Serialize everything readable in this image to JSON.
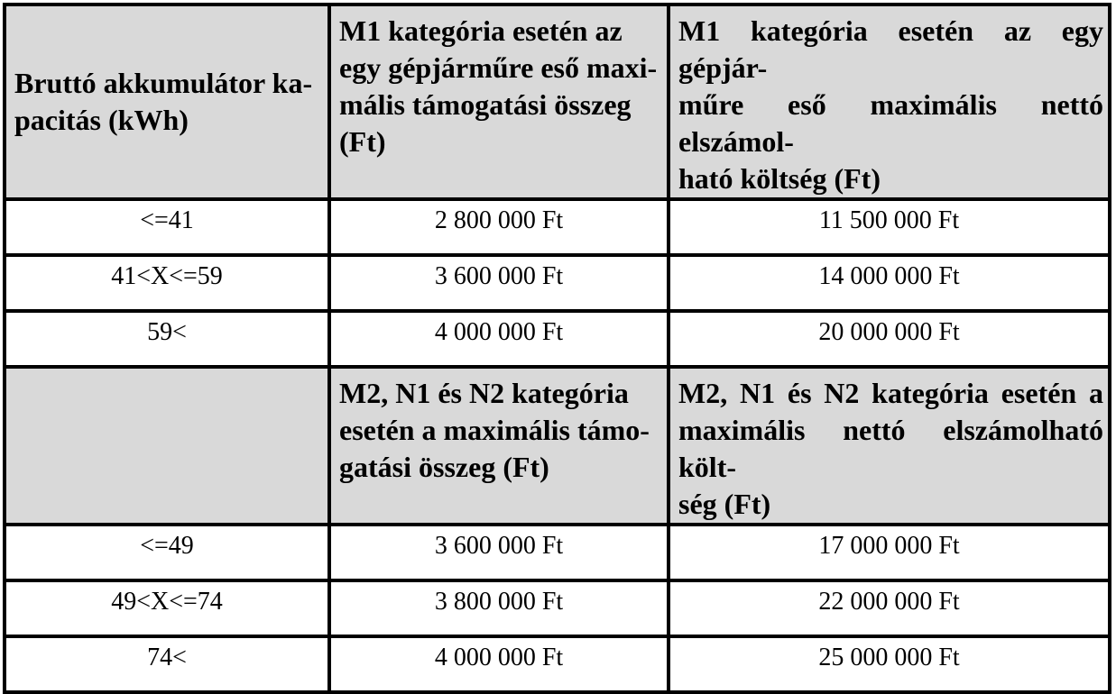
{
  "colors": {
    "header_background": "#d9d9d9",
    "border": "#000000",
    "text": "#000000",
    "page_background": "#ffffff"
  },
  "table": {
    "m1_header": {
      "capacity_lines": [
        "Bruttó akkumulátor ka-",
        "pacitás (kWh)"
      ],
      "support_lines": [
        "M1 kategória esetén az",
        "egy gépjárműre eső maxi-",
        "mális támogatási összeg",
        "(Ft)"
      ],
      "cost_lines": [
        "M1 kategória esetén az egy gépjár-",
        "műre eső maximális nettó elszámol-",
        "ható költség (Ft)"
      ]
    },
    "m1_rows": [
      {
        "capacity": "<=41",
        "support": "2 800 000 Ft",
        "cost": "11 500 000 Ft"
      },
      {
        "capacity": "41<X<=59",
        "support": "3 600 000 Ft",
        "cost": "14 000 000 Ft"
      },
      {
        "capacity": "59<",
        "support": "4 000 000 Ft",
        "cost": "20 000 000 Ft"
      }
    ],
    "m2_header": {
      "capacity_label": "",
      "support_lines": [
        "M2, N1 és N2 kategória",
        "esetén a maximális támo-",
        "gatási összeg (Ft)"
      ],
      "cost_lines": [
        "M2, N1 és N2 kategória esetén a",
        "maximális nettó elszámolható költ-",
        "ség (Ft)"
      ]
    },
    "m2_rows": [
      {
        "capacity": "<=49",
        "support": "3 600 000 Ft",
        "cost": "17 000 000 Ft"
      },
      {
        "capacity": "49<X<=74",
        "support": "3 800 000 Ft",
        "cost": "22 000 000 Ft"
      },
      {
        "capacity": "74<",
        "support": "4 000 000 Ft",
        "cost": "25 000 000 Ft"
      }
    ]
  }
}
